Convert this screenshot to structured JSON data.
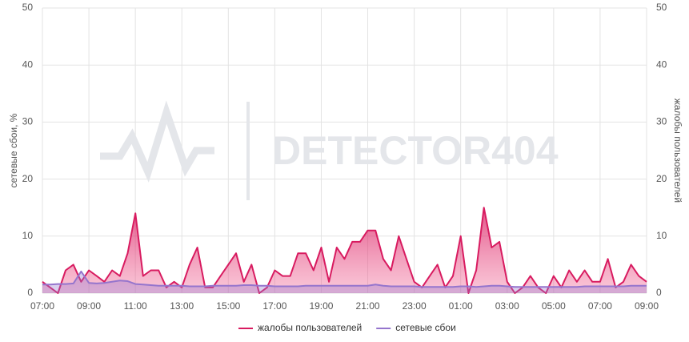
{
  "chart_data": {
    "type": "line",
    "watermark": "DETECTOR404",
    "ylabel": "сетевые сбои, %",
    "y2label": "жалобы пользователей",
    "xlim": [
      0,
      1560
    ],
    "xticks": [
      {
        "value": 0,
        "label": "07:00"
      },
      {
        "value": 120,
        "label": "09:00"
      },
      {
        "value": 240,
        "label": "11:00"
      },
      {
        "value": 360,
        "label": "13:00"
      },
      {
        "value": 480,
        "label": "15:00"
      },
      {
        "value": 600,
        "label": "17:00"
      },
      {
        "value": 720,
        "label": "19:00"
      },
      {
        "value": 840,
        "label": "21:00"
      },
      {
        "value": 960,
        "label": "23:00"
      },
      {
        "value": 1080,
        "label": "01:00"
      },
      {
        "value": 1200,
        "label": "03:00"
      },
      {
        "value": 1320,
        "label": "05:00"
      },
      {
        "value": 1440,
        "label": "07:00"
      },
      {
        "value": 1560,
        "label": "09:00"
      }
    ],
    "ylim": [
      0,
      50
    ],
    "yticks": [
      0,
      10,
      20,
      30,
      40,
      50
    ],
    "y2lim": [
      0,
      50
    ],
    "y2ticks": [
      0,
      10,
      20,
      30,
      40,
      50
    ],
    "grid": true,
    "legend": "bottom",
    "x": [
      0,
      20,
      40,
      60,
      80,
      100,
      120,
      140,
      160,
      180,
      200,
      220,
      240,
      260,
      280,
      300,
      320,
      340,
      360,
      380,
      400,
      420,
      440,
      460,
      480,
      500,
      520,
      540,
      560,
      580,
      600,
      620,
      640,
      660,
      680,
      700,
      720,
      740,
      760,
      780,
      800,
      820,
      840,
      860,
      880,
      900,
      920,
      940,
      960,
      980,
      1000,
      1020,
      1040,
      1060,
      1080,
      1100,
      1120,
      1140,
      1160,
      1180,
      1200,
      1220,
      1240,
      1260,
      1280,
      1300,
      1320,
      1340,
      1360,
      1380,
      1400,
      1420,
      1440,
      1460,
      1480,
      1500,
      1520,
      1540,
      1560
    ],
    "series": [
      {
        "name": "жалобы пользователей",
        "color": "#d81b60",
        "axis": "y2",
        "values": [
          2,
          1,
          0,
          4,
          5,
          2,
          4,
          3,
          2,
          4,
          3,
          7,
          14,
          3,
          4,
          4,
          1,
          2,
          1,
          5,
          8,
          1,
          1,
          3,
          5,
          7,
          2,
          5,
          0,
          1,
          4,
          3,
          3,
          7,
          7,
          4,
          8,
          2,
          8,
          6,
          9,
          9,
          11,
          11,
          6,
          4,
          10,
          6,
          2,
          1,
          3,
          5,
          1,
          3,
          10,
          0,
          4,
          15,
          8,
          9,
          2,
          0,
          1,
          3,
          1,
          0,
          3,
          1,
          4,
          2,
          4,
          2,
          2,
          6,
          1,
          2,
          5,
          3,
          2
        ]
      },
      {
        "name": "сетевые сбои",
        "color": "#9575cd",
        "values": [
          1.5,
          1.5,
          1.6,
          1.6,
          1.7,
          3.8,
          1.8,
          1.7,
          1.8,
          2.0,
          2.2,
          2.1,
          1.6,
          1.5,
          1.4,
          1.3,
          1.3,
          1.3,
          1.3,
          1.2,
          1.2,
          1.2,
          1.3,
          1.3,
          1.3,
          1.3,
          1.4,
          1.4,
          1.3,
          1.3,
          1.2,
          1.2,
          1.2,
          1.2,
          1.3,
          1.3,
          1.3,
          1.3,
          1.3,
          1.3,
          1.3,
          1.3,
          1.3,
          1.5,
          1.3,
          1.2,
          1.2,
          1.2,
          1.2,
          1.1,
          1.1,
          1.1,
          1.1,
          1.1,
          1.2,
          1.2,
          1.1,
          1.2,
          1.3,
          1.3,
          1.2,
          1.1,
          1.1,
          1.1,
          1.1,
          1.1,
          1.1,
          1.1,
          1.1,
          1.1,
          1.2,
          1.2,
          1.2,
          1.2,
          1.2,
          1.2,
          1.3,
          1.3,
          1.3
        ]
      }
    ]
  }
}
